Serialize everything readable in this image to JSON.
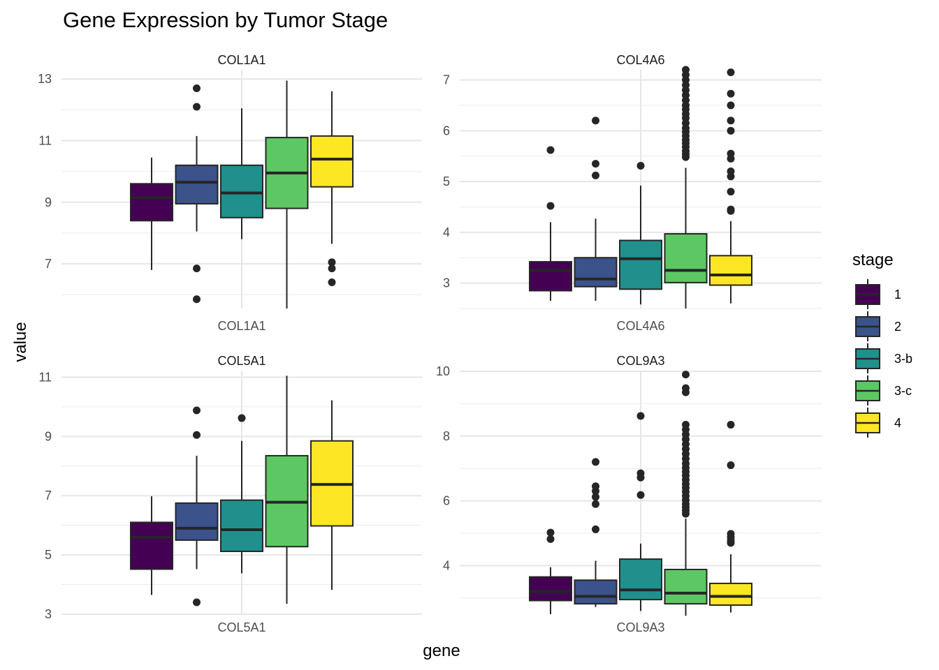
{
  "chart_data": {
    "type": "boxplot",
    "title": "Gene Expression by Tumor Stage",
    "xlabel": "gene",
    "ylabel": "value",
    "legend": {
      "title": "stage",
      "position": "right"
    },
    "stages": [
      "1",
      "2",
      "3-b",
      "3-c",
      "4"
    ],
    "colors": {
      "1": "#440154",
      "2": "#3B528B",
      "3-b": "#21908C",
      "3-c": "#5DC863",
      "4": "#FDE725"
    },
    "grid": true,
    "panels": [
      {
        "gene": "COL1A1",
        "ylim": [
          5.55,
          13.3
        ],
        "yticks": [
          7,
          9,
          11,
          13
        ],
        "boxes": [
          {
            "stage": "1",
            "lower_whisker": 6.8,
            "q1": 8.4,
            "median": 9.15,
            "q3": 9.6,
            "upper_whisker": 10.45,
            "outliers": []
          },
          {
            "stage": "2",
            "lower_whisker": 8.05,
            "q1": 8.95,
            "median": 9.65,
            "q3": 10.2,
            "upper_whisker": 11.15,
            "outliers": [
              12.7,
              12.1,
              6.85,
              5.85
            ]
          },
          {
            "stage": "3-b",
            "lower_whisker": 7.8,
            "q1": 8.5,
            "median": 9.3,
            "q3": 10.2,
            "upper_whisker": 12.05,
            "outliers": []
          },
          {
            "stage": "3-c",
            "lower_whisker": 5.55,
            "q1": 8.8,
            "median": 9.95,
            "q3": 11.1,
            "upper_whisker": 12.95,
            "outliers": []
          },
          {
            "stage": "4",
            "lower_whisker": 7.65,
            "q1": 9.5,
            "median": 10.4,
            "q3": 11.15,
            "upper_whisker": 12.6,
            "outliers": [
              7.05,
              6.85,
              6.4
            ]
          }
        ]
      },
      {
        "gene": "COL4A6",
        "ylim": [
          2.5,
          7.2
        ],
        "yticks": [
          3,
          4,
          5,
          6,
          7
        ],
        "boxes": [
          {
            "stage": "1",
            "lower_whisker": 2.65,
            "q1": 2.85,
            "median": 3.25,
            "q3": 3.42,
            "upper_whisker": 4.2,
            "outliers": [
              5.62,
              4.52
            ]
          },
          {
            "stage": "2",
            "lower_whisker": 2.65,
            "q1": 2.93,
            "median": 3.08,
            "q3": 3.5,
            "upper_whisker": 4.27,
            "outliers": [
              6.2,
              5.35,
              5.12
            ]
          },
          {
            "stage": "3-b",
            "lower_whisker": 2.58,
            "q1": 2.88,
            "median": 3.48,
            "q3": 3.84,
            "upper_whisker": 4.92,
            "outliers": [
              5.31
            ]
          },
          {
            "stage": "3-c",
            "lower_whisker": 2.5,
            "q1": 3.01,
            "median": 3.25,
            "q3": 3.97,
            "upper_whisker": 5.27,
            "outliers": [
              7.2,
              7.1,
              7.0,
              6.9,
              6.8,
              6.7,
              6.6,
              6.5,
              6.42,
              6.33,
              6.25,
              6.15,
              6.05,
              5.98,
              5.9,
              5.82,
              5.75,
              5.68,
              5.6,
              5.54,
              5.48
            ]
          },
          {
            "stage": "4",
            "lower_whisker": 2.6,
            "q1": 2.96,
            "median": 3.16,
            "q3": 3.54,
            "upper_whisker": 4.22,
            "outliers": [
              7.15,
              6.73,
              6.5,
              6.2,
              6.0,
              5.55,
              5.45,
              5.2,
              5.1,
              4.8,
              4.45,
              4.42
            ]
          }
        ]
      },
      {
        "gene": "COL5A1",
        "ylim": [
          3.0,
          11.2
        ],
        "yticks": [
          3,
          5,
          7,
          9,
          11
        ],
        "boxes": [
          {
            "stage": "1",
            "lower_whisker": 3.65,
            "q1": 4.52,
            "median": 5.6,
            "q3": 6.1,
            "upper_whisker": 6.98,
            "outliers": []
          },
          {
            "stage": "2",
            "lower_whisker": 4.52,
            "q1": 5.5,
            "median": 5.9,
            "q3": 6.75,
            "upper_whisker": 8.35,
            "outliers": [
              9.88,
              9.05,
              3.4
            ]
          },
          {
            "stage": "3-b",
            "lower_whisker": 4.38,
            "q1": 5.12,
            "median": 5.85,
            "q3": 6.85,
            "upper_whisker": 8.85,
            "outliers": [
              9.62
            ]
          },
          {
            "stage": "3-c",
            "lower_whisker": 3.35,
            "q1": 5.28,
            "median": 6.78,
            "q3": 8.35,
            "upper_whisker": 11.05,
            "outliers": []
          },
          {
            "stage": "4",
            "lower_whisker": 3.82,
            "q1": 5.98,
            "median": 7.38,
            "q3": 8.85,
            "upper_whisker": 10.22,
            "outliers": []
          }
        ]
      },
      {
        "gene": "COL9A3",
        "ylim": [
          2.5,
          10.0
        ],
        "yticks": [
          4,
          6,
          8,
          10
        ],
        "boxes": [
          {
            "stage": "1",
            "lower_whisker": 2.5,
            "q1": 2.92,
            "median": 3.2,
            "q3": 3.65,
            "upper_whisker": 3.95,
            "outliers": [
              5.02,
              4.82
            ]
          },
          {
            "stage": "2",
            "lower_whisker": 2.72,
            "q1": 2.82,
            "median": 3.05,
            "q3": 3.55,
            "upper_whisker": 4.15,
            "outliers": [
              7.2,
              6.45,
              6.3,
              6.12,
              5.9,
              5.12
            ]
          },
          {
            "stage": "3-b",
            "lower_whisker": 2.6,
            "q1": 2.95,
            "median": 3.25,
            "q3": 4.2,
            "upper_whisker": 4.68,
            "outliers": [
              8.62,
              6.85,
              6.72,
              6.18
            ]
          },
          {
            "stage": "3-c",
            "lower_whisker": 2.45,
            "q1": 2.82,
            "median": 3.15,
            "q3": 3.88,
            "upper_whisker": 5.45,
            "outliers": [
              9.9,
              9.48,
              9.35,
              8.35,
              8.2,
              8.05,
              7.9,
              7.75,
              7.6,
              7.45,
              7.3,
              7.15,
              7.02,
              6.9,
              6.78,
              6.65,
              6.52,
              6.4,
              6.28,
              6.15,
              6.02,
              5.9,
              5.8,
              5.7,
              5.6
            ]
          },
          {
            "stage": "4",
            "lower_whisker": 2.55,
            "q1": 2.78,
            "median": 3.05,
            "q3": 3.45,
            "upper_whisker": 4.35,
            "outliers": [
              8.35,
              7.1,
              4.98,
              4.88,
              4.78,
              4.7
            ]
          }
        ]
      }
    ]
  }
}
